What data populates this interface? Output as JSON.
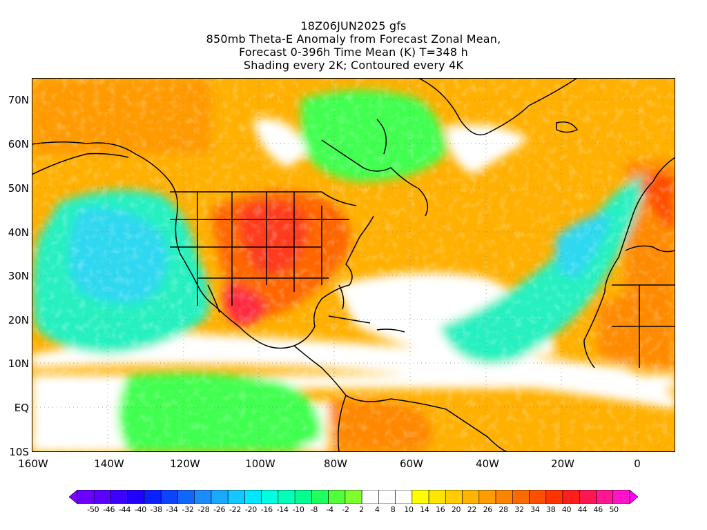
{
  "title": {
    "line1": "18Z06JUN2025 gfs",
    "line2": "850mb Theta-E Anomaly from Forecast Zonal Mean,",
    "line3": "Forecast 0-396h Time Mean (K) T=348 h",
    "line4": "Shading every 2K; Contoured every 4K"
  },
  "axes": {
    "lat_labels": [
      "70N",
      "60N",
      "50N",
      "40N",
      "30N",
      "20N",
      "10N",
      "EQ",
      "10S"
    ],
    "lon_labels": [
      "160W",
      "140W",
      "120W",
      "100W",
      "80W",
      "60W",
      "40W",
      "20W",
      "0"
    ],
    "lat_range": [
      -10,
      75
    ],
    "lon_range": [
      -160,
      10
    ],
    "grid": "dotted"
  },
  "colorbar": {
    "labels": [
      "-50",
      "-46",
      "-44",
      "-40",
      "-38",
      "-34",
      "-32",
      "-28",
      "-26",
      "-22",
      "-20",
      "-16",
      "-14",
      "-10",
      "-8",
      "-4",
      "-2",
      "2",
      "4",
      "8",
      "10",
      "14",
      "16",
      "20",
      "22",
      "26",
      "28",
      "32",
      "34",
      "38",
      "40",
      "44",
      "46",
      "50"
    ],
    "colors": [
      "#7f00ff",
      "#6b00ff",
      "#5a00ff",
      "#3c00ff",
      "#2200ff",
      "#0a20ff",
      "#0b43ff",
      "#1066ff",
      "#1a8cff",
      "#18aaff",
      "#12c8ff",
      "#00e6ff",
      "#00ffe0",
      "#00ffb8",
      "#00ff90",
      "#20ff60",
      "#50ff3a",
      "#80ff30",
      "#ffffff",
      "#ffffff",
      "#ffffff",
      "#ffff00",
      "#ffe400",
      "#ffcc00",
      "#ffb400",
      "#ff9c00",
      "#ff8400",
      "#ff6a00",
      "#ff5000",
      "#ff3400",
      "#ff1e1e",
      "#ff1650",
      "#ff1690",
      "#ff14c8",
      "#ff00ff"
    ]
  }
}
